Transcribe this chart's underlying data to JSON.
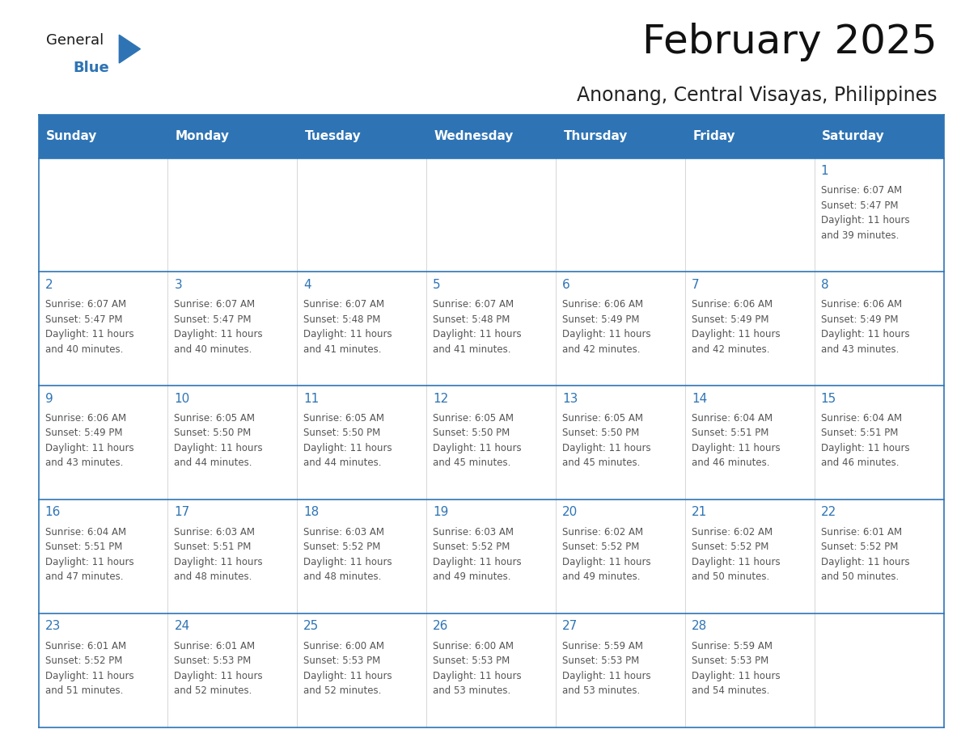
{
  "title": "February 2025",
  "subtitle": "Anonang, Central Visayas, Philippines",
  "header_bg": "#2E74B5",
  "header_text_color": "#FFFFFF",
  "cell_bg": "#FFFFFF",
  "border_color": "#2E74B5",
  "text_color": "#555555",
  "day_number_color": "#2E74B5",
  "days_of_week": [
    "Sunday",
    "Monday",
    "Tuesday",
    "Wednesday",
    "Thursday",
    "Friday",
    "Saturday"
  ],
  "weeks": [
    [
      {
        "day": "",
        "info": ""
      },
      {
        "day": "",
        "info": ""
      },
      {
        "day": "",
        "info": ""
      },
      {
        "day": "",
        "info": ""
      },
      {
        "day": "",
        "info": ""
      },
      {
        "day": "",
        "info": ""
      },
      {
        "day": "1",
        "info": "Sunrise: 6:07 AM\nSunset: 5:47 PM\nDaylight: 11 hours\nand 39 minutes."
      }
    ],
    [
      {
        "day": "2",
        "info": "Sunrise: 6:07 AM\nSunset: 5:47 PM\nDaylight: 11 hours\nand 40 minutes."
      },
      {
        "day": "3",
        "info": "Sunrise: 6:07 AM\nSunset: 5:47 PM\nDaylight: 11 hours\nand 40 minutes."
      },
      {
        "day": "4",
        "info": "Sunrise: 6:07 AM\nSunset: 5:48 PM\nDaylight: 11 hours\nand 41 minutes."
      },
      {
        "day": "5",
        "info": "Sunrise: 6:07 AM\nSunset: 5:48 PM\nDaylight: 11 hours\nand 41 minutes."
      },
      {
        "day": "6",
        "info": "Sunrise: 6:06 AM\nSunset: 5:49 PM\nDaylight: 11 hours\nand 42 minutes."
      },
      {
        "day": "7",
        "info": "Sunrise: 6:06 AM\nSunset: 5:49 PM\nDaylight: 11 hours\nand 42 minutes."
      },
      {
        "day": "8",
        "info": "Sunrise: 6:06 AM\nSunset: 5:49 PM\nDaylight: 11 hours\nand 43 minutes."
      }
    ],
    [
      {
        "day": "9",
        "info": "Sunrise: 6:06 AM\nSunset: 5:49 PM\nDaylight: 11 hours\nand 43 minutes."
      },
      {
        "day": "10",
        "info": "Sunrise: 6:05 AM\nSunset: 5:50 PM\nDaylight: 11 hours\nand 44 minutes."
      },
      {
        "day": "11",
        "info": "Sunrise: 6:05 AM\nSunset: 5:50 PM\nDaylight: 11 hours\nand 44 minutes."
      },
      {
        "day": "12",
        "info": "Sunrise: 6:05 AM\nSunset: 5:50 PM\nDaylight: 11 hours\nand 45 minutes."
      },
      {
        "day": "13",
        "info": "Sunrise: 6:05 AM\nSunset: 5:50 PM\nDaylight: 11 hours\nand 45 minutes."
      },
      {
        "day": "14",
        "info": "Sunrise: 6:04 AM\nSunset: 5:51 PM\nDaylight: 11 hours\nand 46 minutes."
      },
      {
        "day": "15",
        "info": "Sunrise: 6:04 AM\nSunset: 5:51 PM\nDaylight: 11 hours\nand 46 minutes."
      }
    ],
    [
      {
        "day": "16",
        "info": "Sunrise: 6:04 AM\nSunset: 5:51 PM\nDaylight: 11 hours\nand 47 minutes."
      },
      {
        "day": "17",
        "info": "Sunrise: 6:03 AM\nSunset: 5:51 PM\nDaylight: 11 hours\nand 48 minutes."
      },
      {
        "day": "18",
        "info": "Sunrise: 6:03 AM\nSunset: 5:52 PM\nDaylight: 11 hours\nand 48 minutes."
      },
      {
        "day": "19",
        "info": "Sunrise: 6:03 AM\nSunset: 5:52 PM\nDaylight: 11 hours\nand 49 minutes."
      },
      {
        "day": "20",
        "info": "Sunrise: 6:02 AM\nSunset: 5:52 PM\nDaylight: 11 hours\nand 49 minutes."
      },
      {
        "day": "21",
        "info": "Sunrise: 6:02 AM\nSunset: 5:52 PM\nDaylight: 11 hours\nand 50 minutes."
      },
      {
        "day": "22",
        "info": "Sunrise: 6:01 AM\nSunset: 5:52 PM\nDaylight: 11 hours\nand 50 minutes."
      }
    ],
    [
      {
        "day": "23",
        "info": "Sunrise: 6:01 AM\nSunset: 5:52 PM\nDaylight: 11 hours\nand 51 minutes."
      },
      {
        "day": "24",
        "info": "Sunrise: 6:01 AM\nSunset: 5:53 PM\nDaylight: 11 hours\nand 52 minutes."
      },
      {
        "day": "25",
        "info": "Sunrise: 6:00 AM\nSunset: 5:53 PM\nDaylight: 11 hours\nand 52 minutes."
      },
      {
        "day": "26",
        "info": "Sunrise: 6:00 AM\nSunset: 5:53 PM\nDaylight: 11 hours\nand 53 minutes."
      },
      {
        "day": "27",
        "info": "Sunrise: 5:59 AM\nSunset: 5:53 PM\nDaylight: 11 hours\nand 53 minutes."
      },
      {
        "day": "28",
        "info": "Sunrise: 5:59 AM\nSunset: 5:53 PM\nDaylight: 11 hours\nand 54 minutes."
      },
      {
        "day": "",
        "info": ""
      }
    ]
  ],
  "logo_text_general": "General",
  "logo_text_blue": "Blue",
  "logo_color_general": "#1a1a1a",
  "logo_color_blue": "#2E74B5",
  "logo_triangle_color": "#2E74B5",
  "title_fontsize": 36,
  "subtitle_fontsize": 17,
  "header_fontsize": 11,
  "day_num_fontsize": 11,
  "info_fontsize": 8.5
}
